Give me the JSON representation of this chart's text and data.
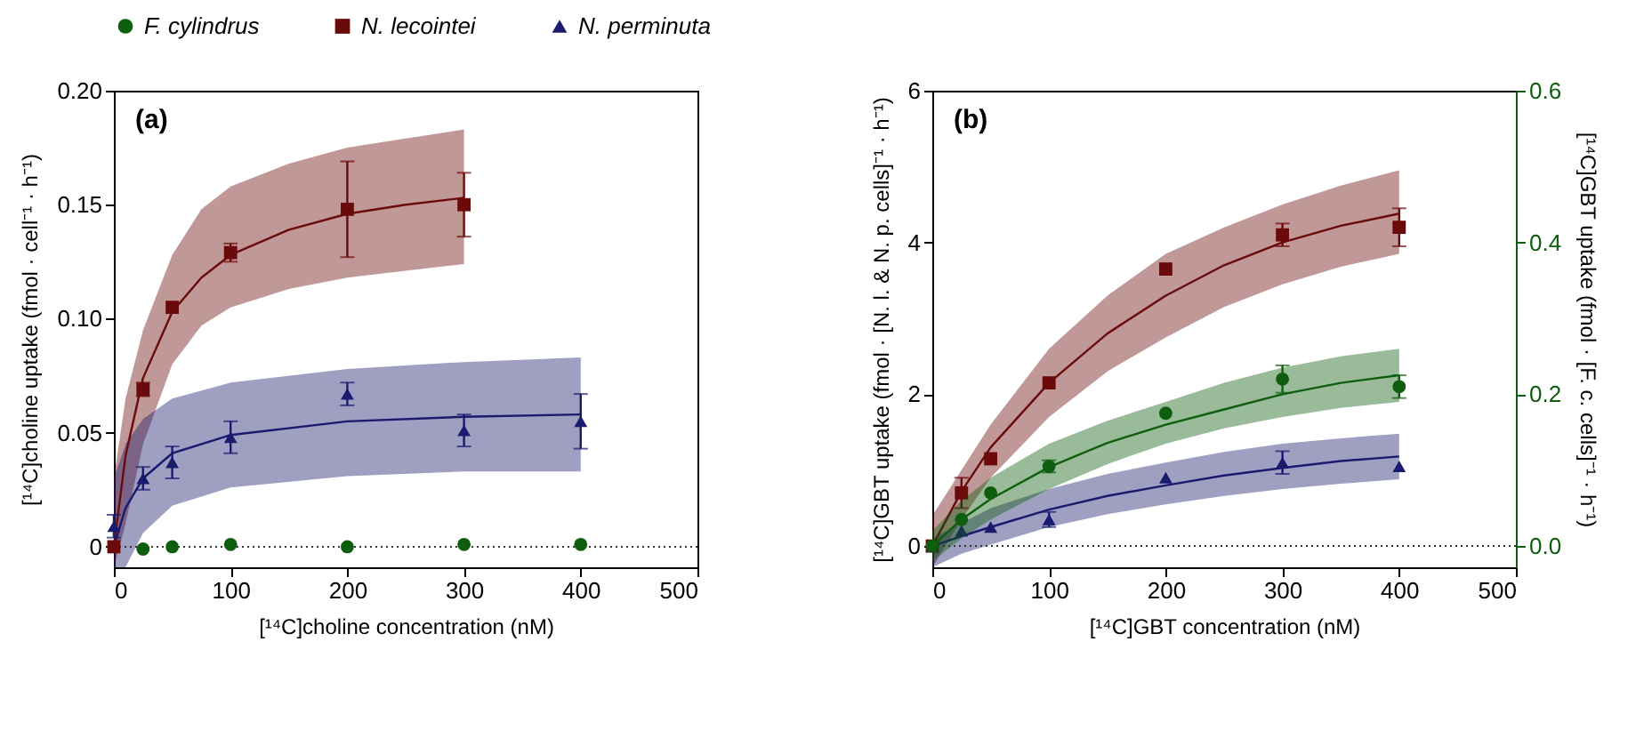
{
  "chart_data": [
    {
      "type": "scatter",
      "xlabel": "[¹⁴C]choline concentration (nM)",
      "ylabel": "[¹⁴C]choline uptake (fmol · cell⁻¹ · h⁻¹)",
      "annotations": [
        "(a)"
      ],
      "legend": "top",
      "grid": false,
      "xlim": [
        0,
        500
      ],
      "xticks": [
        0,
        100,
        200,
        300,
        400,
        500
      ],
      "ylim": [
        -0.009,
        0.2
      ],
      "yticks": [
        {
          "value": 0,
          "label": "0"
        },
        0.05,
        {
          "value": 0.1,
          "label": "0.10"
        },
        0.15,
        {
          "value": 0.2,
          "label": "0.20"
        }
      ],
      "ref_lines": [
        {
          "axis": "y",
          "value": 0,
          "line_style": "dotted",
          "color": "#333333"
        }
      ],
      "series": [
        {
          "type": "line",
          "color": "#6b0a0a",
          "x": [
            0,
            10,
            25,
            50,
            75,
            100,
            150,
            200,
            250,
            300
          ],
          "values": [
            0,
            0.04,
            0.074,
            0.103,
            0.118,
            0.128,
            0.139,
            0.146,
            0.15,
            0.153
          ],
          "lower": [
            -0.009,
            0.01,
            0.045,
            0.08,
            0.097,
            0.105,
            0.113,
            0.118,
            0.121,
            0.124
          ],
          "upper": [
            0.03,
            0.065,
            0.095,
            0.128,
            0.148,
            0.158,
            0.168,
            0.175,
            0.179,
            0.183
          ]
        },
        {
          "type": "line",
          "color": "#1a1a6e",
          "x": [
            0,
            10,
            25,
            50,
            100,
            200,
            300,
            400
          ],
          "values": [
            0,
            0.017,
            0.03,
            0.041,
            0.049,
            0.055,
            0.057,
            0.058
          ],
          "lower": [
            -0.009,
            -0.009,
            0.006,
            0.018,
            0.026,
            0.031,
            0.033,
            0.033
          ],
          "upper": [
            0.03,
            0.045,
            0.056,
            0.065,
            0.072,
            0.078,
            0.081,
            0.083
          ]
        },
        {
          "name": "F. cylindrus",
          "color": "#0f5e0f",
          "marker": "circle",
          "x": [
            25,
            50,
            100,
            200,
            300,
            400
          ],
          "values": [
            -0.001,
            0,
            0.001,
            0,
            0.001,
            0.001
          ]
        },
        {
          "name": "N. lecointei",
          "color": "#6b0a0a",
          "marker": "square",
          "x": [
            0,
            25,
            50,
            100,
            200,
            300
          ],
          "values": [
            0,
            0.069,
            0.105,
            0.129,
            0.148,
            0.15
          ],
          "errors": [
            null,
            0.003,
            null,
            0.004,
            0.021,
            0.014
          ]
        },
        {
          "name": "N. perminuta",
          "color": "#1a1a6e",
          "marker": "triangle",
          "x": [
            0,
            25,
            50,
            100,
            200,
            300,
            400
          ],
          "values": [
            0.009,
            0.03,
            0.037,
            0.048,
            0.067,
            0.051,
            0.055
          ],
          "errors": [
            0.005,
            0.005,
            0.007,
            0.007,
            0.005,
            0.007,
            0.012
          ]
        }
      ]
    },
    {
      "type": "scatter",
      "xlabel": "[¹⁴C]GBT concentration (nM)",
      "ylabel": "[¹⁴C]GBT uptake (fmol · [N. l. & N. p. cells]⁻¹ · h⁻¹)",
      "y2label": "[¹⁴C]GBT uptake (fmol · [F. c. cells]⁻¹ · h⁻¹)",
      "annotations": [
        "(b)"
      ],
      "legend": "top",
      "grid": false,
      "xlim": [
        0,
        500
      ],
      "xticks": [
        0,
        100,
        200,
        300,
        400,
        500
      ],
      "ylim": [
        -0.28,
        6
      ],
      "yticks": [
        0,
        2,
        4,
        6
      ],
      "y2lim": [
        -0.028,
        0.6
      ],
      "y2ticks": [
        {
          "value": 0,
          "label": "0.0"
        },
        0.2,
        0.4,
        0.6
      ],
      "ref_lines": [
        {
          "axis": "y",
          "value": 0,
          "line_style": "dotted",
          "color": "#333333"
        }
      ],
      "series": [
        {
          "type": "line",
          "color": "#6b0a0a",
          "x": [
            0,
            25,
            50,
            100,
            150,
            200,
            250,
            300,
            350,
            400
          ],
          "values": [
            0,
            0.72,
            1.3,
            2.15,
            2.8,
            3.3,
            3.7,
            4.0,
            4.22,
            4.38
          ],
          "lower": [
            -0.28,
            0.35,
            0.9,
            1.7,
            2.3,
            2.75,
            3.15,
            3.45,
            3.68,
            3.85
          ],
          "upper": [
            0.4,
            1.0,
            1.6,
            2.6,
            3.3,
            3.85,
            4.2,
            4.5,
            4.75,
            4.95
          ]
        },
        {
          "type": "line",
          "axis": "y2",
          "color": "#0f5e0f",
          "x": [
            0,
            25,
            50,
            100,
            150,
            200,
            250,
            300,
            350,
            400
          ],
          "values": [
            0,
            0.035,
            0.062,
            0.104,
            0.136,
            0.16,
            0.18,
            0.2,
            0.215,
            0.225
          ],
          "lower": [
            -0.02,
            0.01,
            0.035,
            0.075,
            0.108,
            0.135,
            0.155,
            0.17,
            0.182,
            0.19
          ],
          "upper": [
            0.02,
            0.06,
            0.09,
            0.135,
            0.165,
            0.19,
            0.215,
            0.235,
            0.25,
            0.26
          ]
        },
        {
          "type": "line",
          "color": "#1a1a6e",
          "x": [
            0,
            25,
            50,
            100,
            150,
            200,
            250,
            300,
            350,
            400
          ],
          "values": [
            0,
            0.13,
            0.25,
            0.48,
            0.66,
            0.8,
            0.93,
            1.03,
            1.12,
            1.18
          ],
          "lower": [
            -0.28,
            -0.1,
            0.02,
            0.25,
            0.42,
            0.55,
            0.66,
            0.75,
            0.82,
            0.88
          ],
          "upper": [
            0.1,
            0.3,
            0.5,
            0.75,
            0.95,
            1.1,
            1.24,
            1.35,
            1.42,
            1.48
          ]
        },
        {
          "axis": "y2",
          "name": "F. cylindrus",
          "color": "#0f5e0f",
          "marker": "circle",
          "x": [
            0,
            25,
            50,
            100,
            200,
            300,
            400
          ],
          "values": [
            0,
            0.035,
            0.07,
            0.105,
            0.175,
            0.22,
            0.21
          ],
          "errors": [
            null,
            null,
            null,
            0.008,
            null,
            0.018,
            0.015
          ]
        },
        {
          "name": "N. lecointei",
          "color": "#6b0a0a",
          "marker": "square",
          "x": [
            0,
            25,
            50,
            100,
            200,
            300,
            400
          ],
          "values": [
            0,
            0.7,
            1.15,
            2.15,
            3.65,
            4.1,
            4.2
          ],
          "errors": [
            null,
            0.2,
            null,
            null,
            null,
            0.15,
            0.25
          ]
        },
        {
          "name": "N. perminuta",
          "color": "#1a1a6e",
          "marker": "triangle",
          "x": [
            0,
            25,
            50,
            100,
            200,
            300,
            400
          ],
          "values": [
            0,
            0.2,
            0.25,
            0.35,
            0.9,
            1.1,
            1.05
          ],
          "errors": [
            null,
            null,
            null,
            0.1,
            null,
            0.15,
            null
          ]
        }
      ]
    }
  ]
}
